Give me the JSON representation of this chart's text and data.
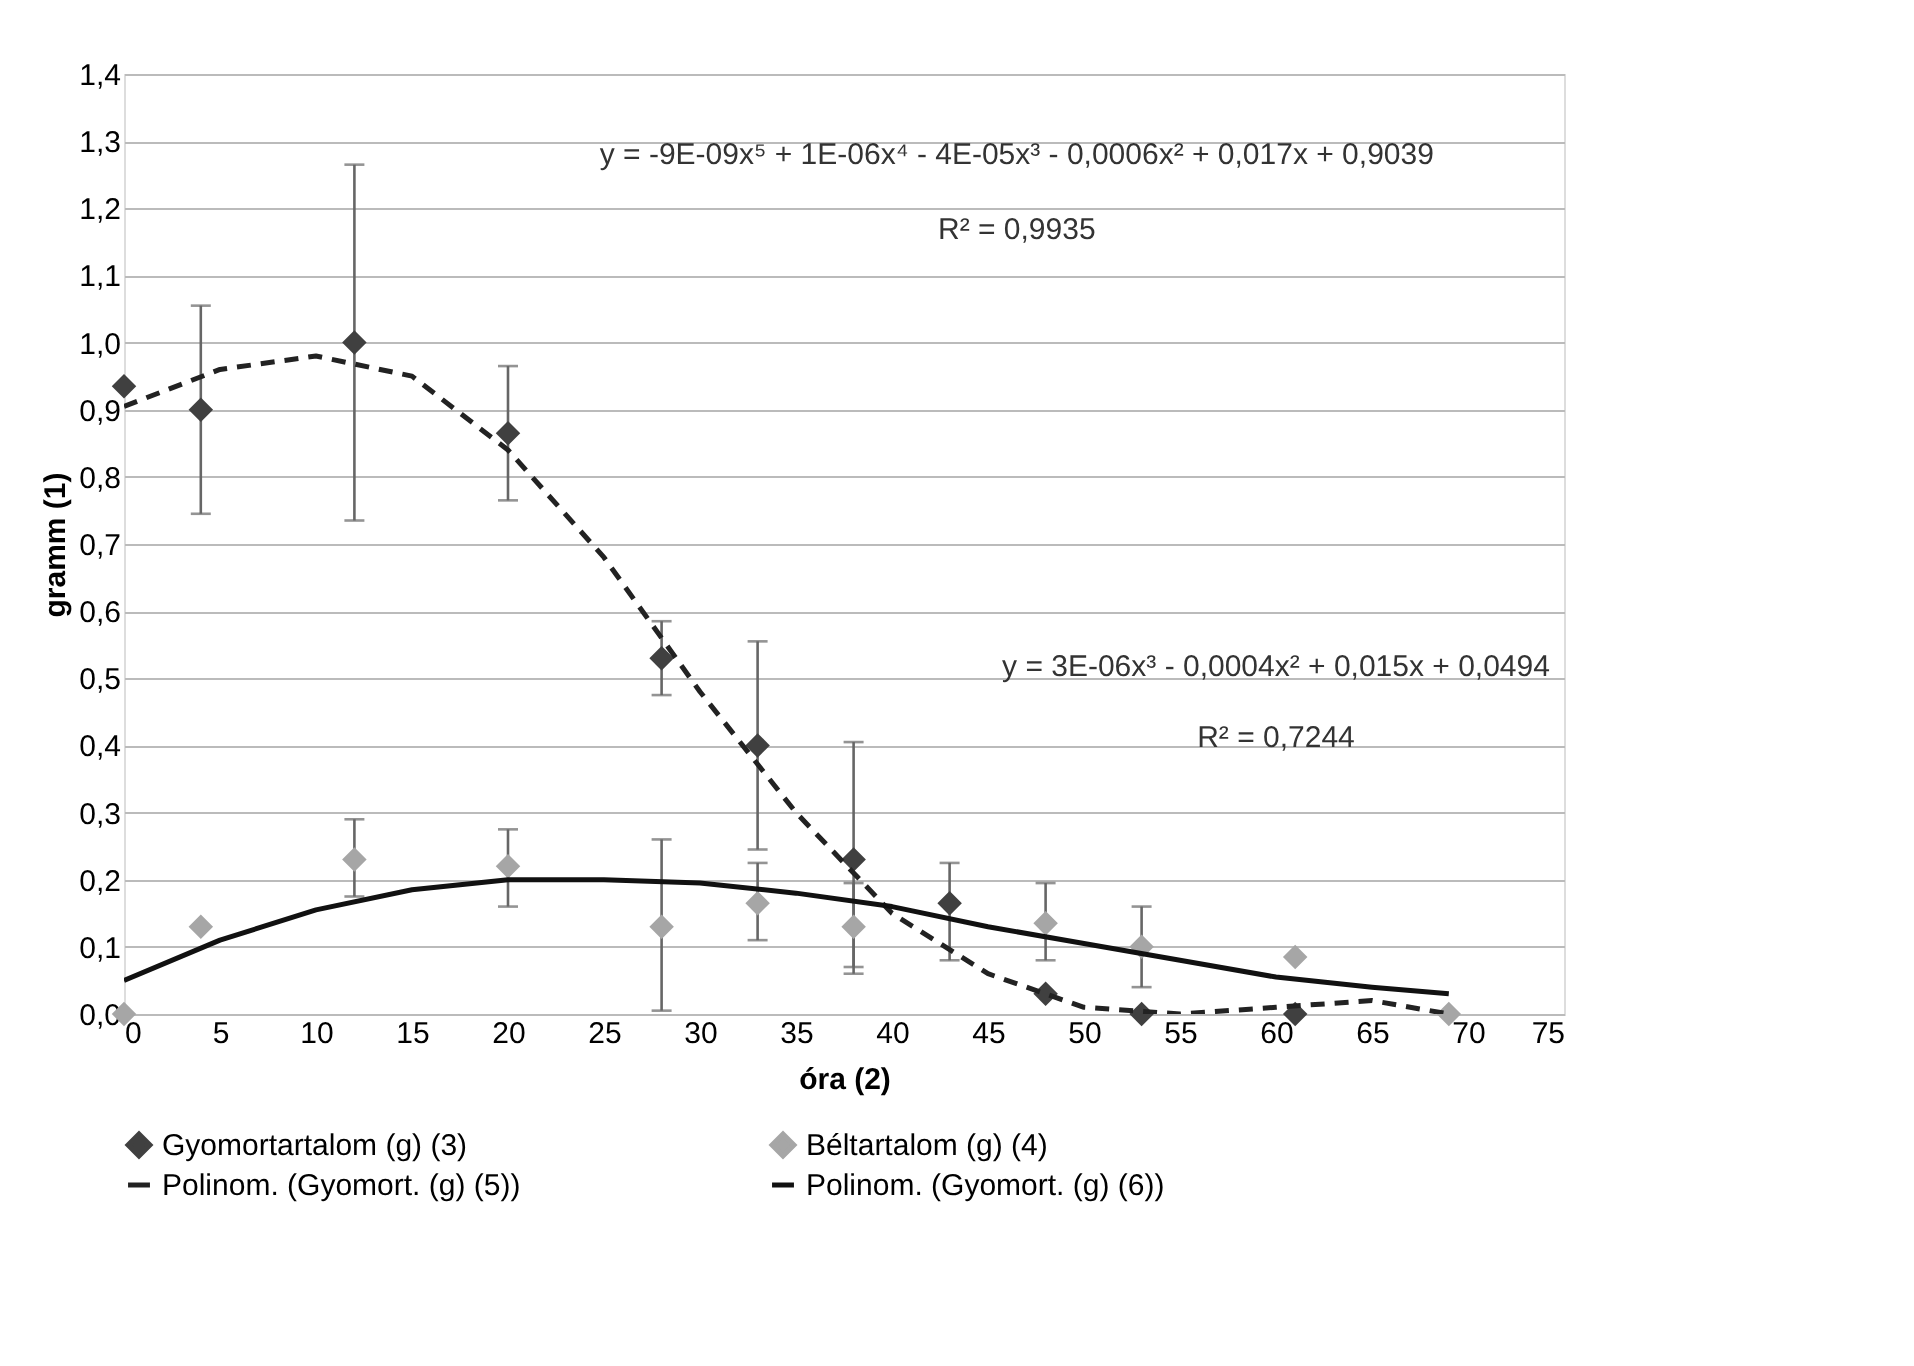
{
  "chart_data": {
    "type": "scatter",
    "xlabel": "óra (2)",
    "ylabel": "gramm (1)",
    "xlim": [
      0,
      75
    ],
    "xticks": [
      0,
      5,
      10,
      15,
      20,
      25,
      30,
      35,
      40,
      45,
      50,
      55,
      60,
      65,
      70,
      75
    ],
    "ylim": [
      0,
      1.4
    ],
    "yticks": [
      {
        "value": 0,
        "label": "0,0"
      },
      {
        "value": 0.1,
        "label": "0,1"
      },
      {
        "value": 0.2,
        "label": "0,2"
      },
      {
        "value": 0.3,
        "label": "0,3"
      },
      {
        "value": 0.4,
        "label": "0,4"
      },
      {
        "value": 0.5,
        "label": "0,5"
      },
      {
        "value": 0.6,
        "label": "0,6"
      },
      {
        "value": 0.7,
        "label": "0,7"
      },
      {
        "value": 0.8,
        "label": "0,8"
      },
      {
        "value": 0.9,
        "label": "0,9"
      },
      {
        "value": 1.0,
        "label": "1,0"
      },
      {
        "value": 1.1,
        "label": "1,1"
      },
      {
        "value": 1.2,
        "label": "1,2"
      },
      {
        "value": 1.3,
        "label": "1,3"
      },
      {
        "value": 1.4,
        "label": "1,4"
      }
    ],
    "grid": "y",
    "legend": "bottom",
    "marker": "diamond",
    "series": [
      {
        "name": "Gyomortartalom (g) (3)",
        "color": "#404040",
        "x": [
          0,
          4,
          12,
          20,
          28,
          33,
          38,
          43,
          48,
          53,
          61
        ],
        "values": [
          0.935,
          0.9,
          1.0,
          0.865,
          0.53,
          0.4,
          0.23,
          0.165,
          0.03,
          0.0,
          0.0
        ],
        "errors": [
          null,
          [
            0.745,
            1.055
          ],
          [
            0.735,
            1.265
          ],
          [
            0.765,
            0.965
          ],
          [
            0.475,
            0.585
          ],
          [
            0.245,
            0.555
          ],
          [
            0.06,
            0.405
          ],
          [
            0.08,
            0.225
          ],
          null,
          null,
          null
        ]
      },
      {
        "name": "Béltartalom (g) (4)",
        "color": "#a6a6a6",
        "x": [
          0,
          4,
          12,
          20,
          28,
          33,
          38,
          48,
          53,
          61,
          69
        ],
        "values": [
          0.0,
          0.13,
          0.23,
          0.22,
          0.13,
          0.165,
          0.13,
          0.135,
          0.1,
          0.085,
          0.0
        ],
        "errors": [
          null,
          null,
          [
            0.175,
            0.29
          ],
          [
            0.16,
            0.275
          ],
          [
            0.005,
            0.26
          ],
          [
            0.11,
            0.225
          ],
          [
            0.07,
            0.195
          ],
          [
            0.08,
            0.195
          ],
          [
            0.04,
            0.16
          ],
          null,
          null
        ]
      },
      {
        "name": "Polinom. (Gyomort. (g) (5))",
        "type": "line",
        "marker": "none",
        "line_style": "dashed",
        "color": "#222222",
        "x": [
          0,
          5,
          10,
          15,
          20,
          25,
          30,
          35,
          40,
          45,
          50,
          55,
          60,
          65,
          69
        ],
        "values": [
          0.905,
          0.96,
          0.98,
          0.95,
          0.84,
          0.68,
          0.48,
          0.3,
          0.15,
          0.06,
          0.01,
          0.0,
          0.01,
          0.02,
          0.0
        ]
      },
      {
        "name": "Polinom. (Gyomort. (g) (6))",
        "type": "line",
        "marker": "none",
        "line_style": "solid",
        "color": "#111111",
        "x": [
          0,
          5,
          10,
          15,
          20,
          25,
          30,
          35,
          40,
          45,
          50,
          55,
          60,
          65,
          69
        ],
        "values": [
          0.05,
          0.11,
          0.155,
          0.185,
          0.2,
          0.2,
          0.195,
          0.18,
          0.16,
          0.13,
          0.105,
          0.08,
          0.055,
          0.04,
          0.03
        ]
      }
    ],
    "annotations": [
      "y = -9E-09x⁵ + 1E-06x⁴ - 4E-05x³ - 0,0006x² + 0,017x + 0,9039",
      "R² = 0,9935",
      "y = 3E-06x³ - 0,0004x² + 0,015x + 0,0494",
      "R² = 0,7244"
    ]
  }
}
